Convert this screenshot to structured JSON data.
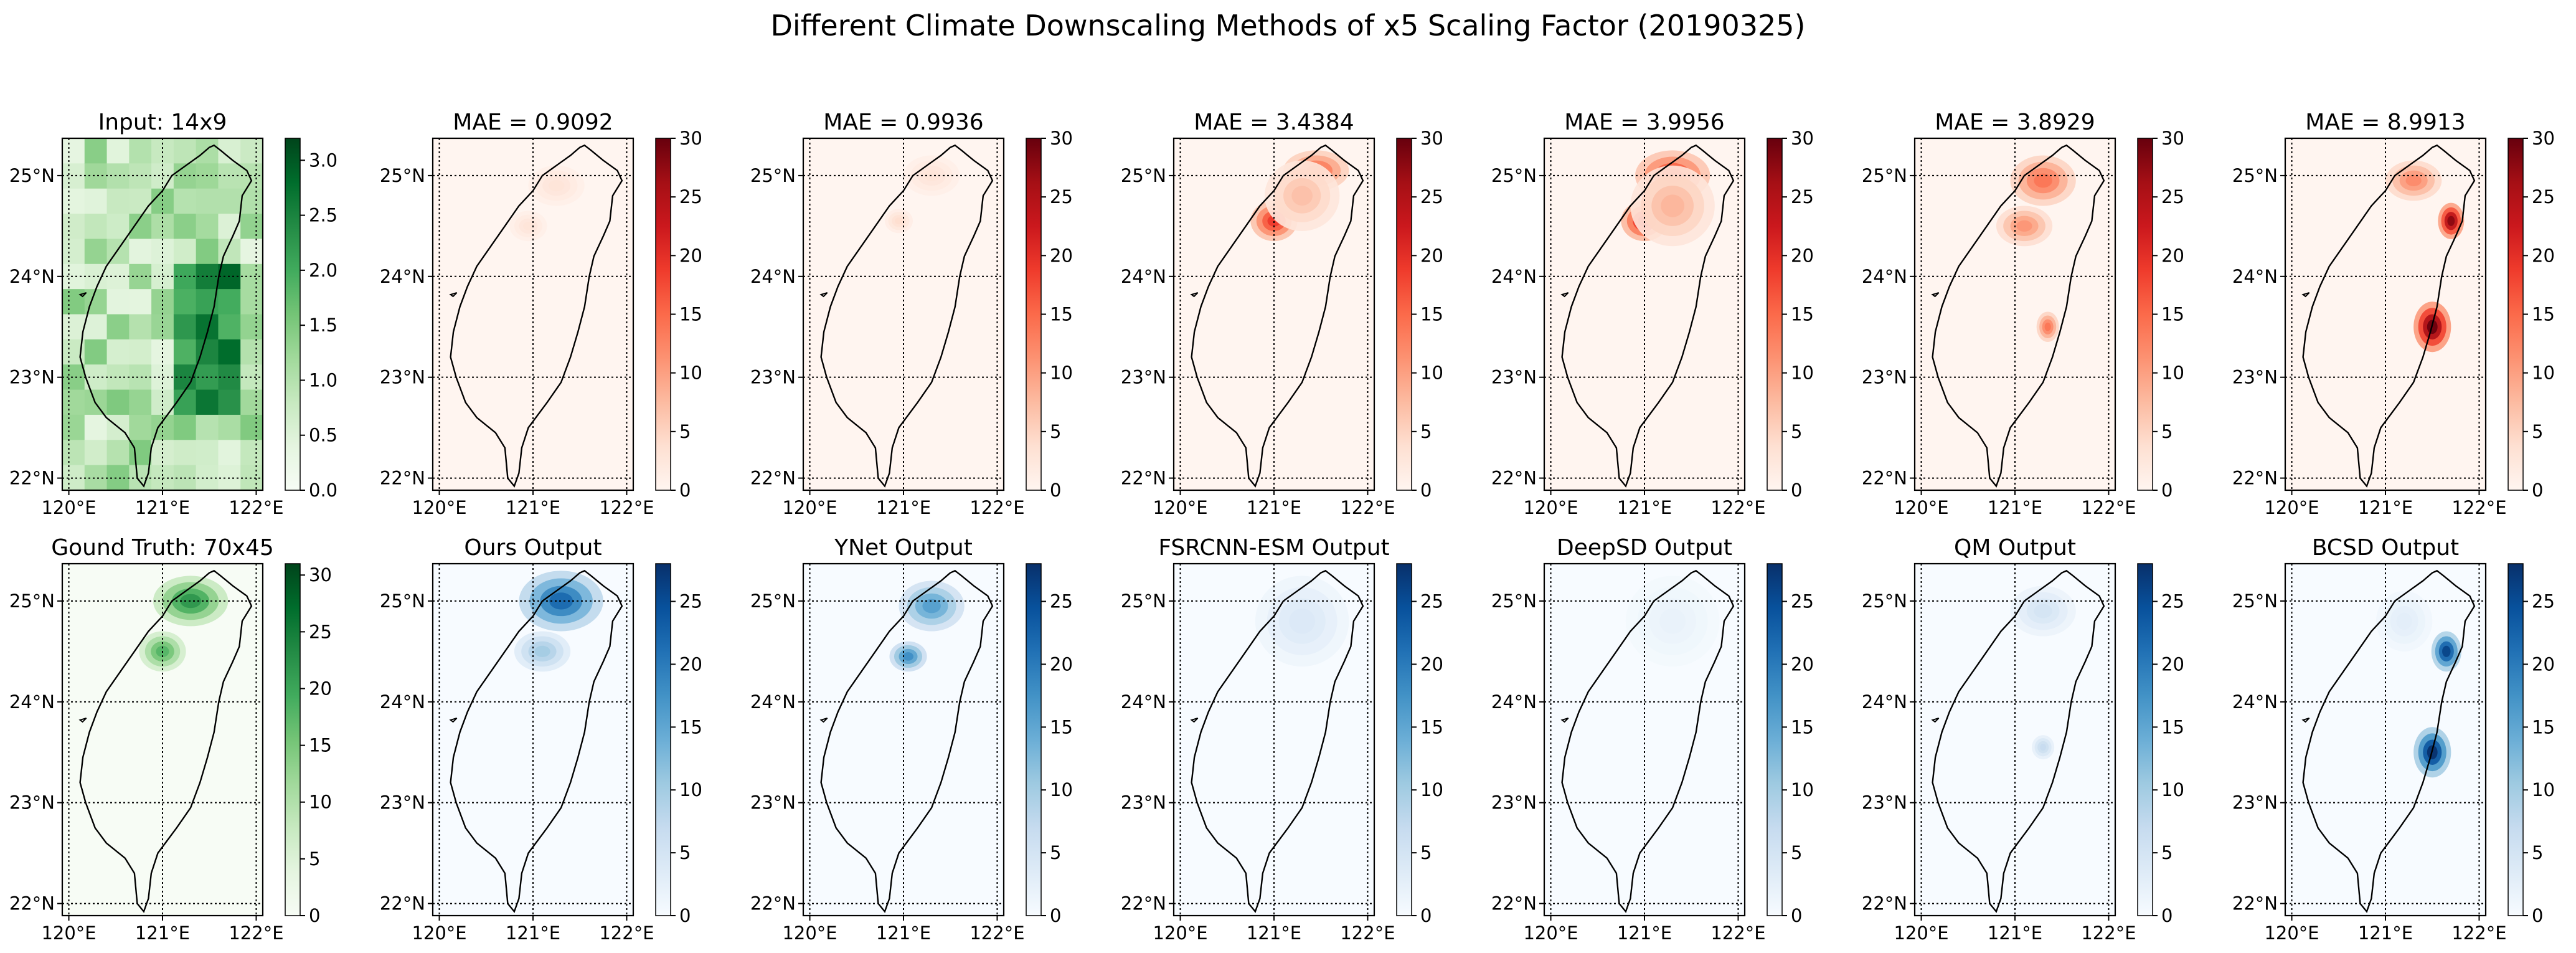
{
  "figure": {
    "title": "Different Climate Downscaling Methods of x5 Scaling Factor (20190325)"
  },
  "colormaps": {
    "Greens": [
      "#f7fcf5",
      "#e5f5e0",
      "#c7e9c0",
      "#a1d99b",
      "#74c476",
      "#41ab5d",
      "#238b45",
      "#006d2c",
      "#00441b"
    ],
    "Reds": [
      "#fff5f0",
      "#fee0d2",
      "#fcbba1",
      "#fc9272",
      "#fb6a4a",
      "#ef3b2c",
      "#cb181d",
      "#a50f15",
      "#67000d"
    ],
    "Blues": [
      "#f7fbff",
      "#deebf7",
      "#c6dbef",
      "#9ecae1",
      "#6baed6",
      "#4292c6",
      "#2171b5",
      "#08519c",
      "#08306b"
    ]
  },
  "chart_data": [
    {
      "type": "heatmap",
      "title": "Input: 14x9",
      "cmap": "Greens",
      "range": [
        0,
        3.2
      ],
      "colorbar_ticks": [
        "0.0",
        "0.5",
        "1.0",
        "1.5",
        "2.0",
        "2.5",
        "3.0"
      ],
      "colorbar_values": [
        0,
        0.5,
        1.0,
        1.5,
        2.0,
        2.5,
        3.0
      ],
      "x_ticks": [
        "120°E",
        "121°E",
        "122°E"
      ],
      "y_ticks": [
        "25°N",
        "24°N",
        "23°N",
        "22°N"
      ],
      "blobs": []
    },
    {
      "type": "heatmap",
      "title": "MAE = 0.9092",
      "cmap": "Reds",
      "range": [
        0,
        30
      ],
      "colorbar_ticks": [
        "0",
        "5",
        "10",
        "15",
        "20",
        "25",
        "30"
      ],
      "colorbar_values": [
        0,
        5,
        10,
        15,
        20,
        25,
        30
      ],
      "x_ticks": [
        "120°E",
        "121°E",
        "122°E"
      ],
      "y_ticks": [
        "25°N",
        "24°N",
        "23°N",
        "22°N"
      ],
      "blobs": [
        {
          "lon": 121.25,
          "lat": 24.9,
          "rl": 0.3,
          "rt": 0.2,
          "v": 3
        },
        {
          "lon": 120.95,
          "lat": 24.5,
          "rl": 0.2,
          "rt": 0.15,
          "v": 3
        }
      ]
    },
    {
      "type": "heatmap",
      "title": "MAE = 0.9936",
      "cmap": "Reds",
      "range": [
        0,
        30
      ],
      "colorbar_ticks": [
        "0",
        "5",
        "10",
        "15",
        "20",
        "25",
        "30"
      ],
      "colorbar_values": [
        0,
        5,
        10,
        15,
        20,
        25,
        30
      ],
      "x_ticks": [
        "120°E",
        "121°E",
        "122°E"
      ],
      "y_ticks": [
        "25°N",
        "24°N",
        "23°N",
        "22°N"
      ],
      "blobs": [
        {
          "lon": 121.3,
          "lat": 25.0,
          "rl": 0.3,
          "rt": 0.2,
          "v": 3
        },
        {
          "lon": 120.95,
          "lat": 24.55,
          "rl": 0.15,
          "rt": 0.12,
          "v": 4
        }
      ]
    },
    {
      "type": "heatmap",
      "title": "MAE = 3.4384",
      "cmap": "Reds",
      "range": [
        0,
        30
      ],
      "colorbar_ticks": [
        "0",
        "5",
        "10",
        "15",
        "20",
        "25",
        "30"
      ],
      "colorbar_values": [
        0,
        5,
        10,
        15,
        20,
        25,
        30
      ],
      "x_ticks": [
        "120°E",
        "121°E",
        "122°E"
      ],
      "y_ticks": [
        "25°N",
        "24°N",
        "23°N",
        "22°N"
      ],
      "blobs": [
        {
          "lon": 121.45,
          "lat": 25.05,
          "rl": 0.35,
          "rt": 0.2,
          "v": 15
        },
        {
          "lon": 121.0,
          "lat": 24.55,
          "rl": 0.25,
          "rt": 0.2,
          "v": 19
        },
        {
          "lon": 121.3,
          "lat": 24.8,
          "rl": 0.4,
          "rt": 0.35,
          "v": 7
        }
      ]
    },
    {
      "type": "heatmap",
      "title": "MAE = 3.9956",
      "cmap": "Reds",
      "range": [
        0,
        30
      ],
      "colorbar_ticks": [
        "0",
        "5",
        "10",
        "15",
        "20",
        "25",
        "30"
      ],
      "colorbar_values": [
        0,
        5,
        10,
        15,
        20,
        25,
        30
      ],
      "x_ticks": [
        "120°E",
        "121°E",
        "122°E"
      ],
      "y_ticks": [
        "25°N",
        "24°N",
        "23°N",
        "22°N"
      ],
      "blobs": [
        {
          "lon": 121.3,
          "lat": 25.0,
          "rl": 0.4,
          "rt": 0.25,
          "v": 18
        },
        {
          "lon": 121.0,
          "lat": 24.55,
          "rl": 0.25,
          "rt": 0.2,
          "v": 22
        },
        {
          "lon": 121.3,
          "lat": 24.7,
          "rl": 0.45,
          "rt": 0.4,
          "v": 8
        }
      ]
    },
    {
      "type": "heatmap",
      "title": "MAE = 3.8929",
      "cmap": "Reds",
      "range": [
        0,
        30
      ],
      "colorbar_ticks": [
        "0",
        "5",
        "10",
        "15",
        "20",
        "25",
        "30"
      ],
      "colorbar_values": [
        0,
        5,
        10,
        15,
        20,
        25,
        30
      ],
      "x_ticks": [
        "120°E",
        "121°E",
        "122°E"
      ],
      "y_ticks": [
        "25°N",
        "24°N",
        "23°N",
        "22°N"
      ],
      "blobs": [
        {
          "lon": 121.3,
          "lat": 24.95,
          "rl": 0.35,
          "rt": 0.25,
          "v": 14
        },
        {
          "lon": 121.1,
          "lat": 24.5,
          "rl": 0.3,
          "rt": 0.2,
          "v": 11
        },
        {
          "lon": 121.35,
          "lat": 23.5,
          "rl": 0.12,
          "rt": 0.15,
          "v": 14
        }
      ]
    },
    {
      "type": "heatmap",
      "title": "MAE = 8.9913",
      "cmap": "Reds",
      "range": [
        0,
        30
      ],
      "colorbar_ticks": [
        "0",
        "5",
        "10",
        "15",
        "20",
        "25",
        "30"
      ],
      "colorbar_values": [
        0,
        5,
        10,
        15,
        20,
        25,
        30
      ],
      "x_ticks": [
        "120°E",
        "121°E",
        "122°E"
      ],
      "y_ticks": [
        "25°N",
        "24°N",
        "23°N",
        "22°N"
      ],
      "blobs": [
        {
          "lon": 121.3,
          "lat": 24.95,
          "rl": 0.3,
          "rt": 0.2,
          "v": 12
        },
        {
          "lon": 121.7,
          "lat": 24.55,
          "rl": 0.14,
          "rt": 0.18,
          "v": 28
        },
        {
          "lon": 121.5,
          "lat": 23.5,
          "rl": 0.2,
          "rt": 0.25,
          "v": 30
        }
      ]
    },
    {
      "type": "heatmap",
      "title": "Gound Truth: 70x45",
      "cmap": "Greens",
      "range": [
        0,
        31
      ],
      "colorbar_ticks": [
        "0",
        "5",
        "10",
        "15",
        "20",
        "25",
        "30"
      ],
      "colorbar_values": [
        0,
        5,
        10,
        15,
        20,
        25,
        30
      ],
      "x_ticks": [
        "120°E",
        "121°E",
        "122°E"
      ],
      "y_ticks": [
        "25°N",
        "24°N",
        "23°N",
        "22°N"
      ],
      "blobs": [
        {
          "lon": 121.3,
          "lat": 25.0,
          "rl": 0.4,
          "rt": 0.25,
          "v": 22
        },
        {
          "lon": 121.0,
          "lat": 24.5,
          "rl": 0.25,
          "rt": 0.2,
          "v": 18
        }
      ]
    },
    {
      "type": "heatmap",
      "title": "Ours Output",
      "cmap": "Blues",
      "range": [
        0,
        28
      ],
      "colorbar_ticks": [
        "0",
        "5",
        "10",
        "15",
        "20",
        "25"
      ],
      "colorbar_values": [
        0,
        5,
        10,
        15,
        20,
        25
      ],
      "x_ticks": [
        "120°E",
        "121°E",
        "122°E"
      ],
      "y_ticks": [
        "25°N",
        "24°N",
        "23°N",
        "22°N"
      ],
      "blobs": [
        {
          "lon": 121.3,
          "lat": 25.0,
          "rl": 0.45,
          "rt": 0.3,
          "v": 22
        },
        {
          "lon": 121.1,
          "lat": 24.5,
          "rl": 0.3,
          "rt": 0.2,
          "v": 10
        }
      ]
    },
    {
      "type": "heatmap",
      "title": "YNet Output",
      "cmap": "Blues",
      "range": [
        0,
        28
      ],
      "colorbar_ticks": [
        "0",
        "5",
        "10",
        "15",
        "20",
        "25"
      ],
      "colorbar_values": [
        0,
        5,
        10,
        15,
        20,
        25
      ],
      "x_ticks": [
        "120°E",
        "121°E",
        "122°E"
      ],
      "y_ticks": [
        "25°N",
        "24°N",
        "23°N",
        "22°N"
      ],
      "blobs": [
        {
          "lon": 121.3,
          "lat": 24.95,
          "rl": 0.35,
          "rt": 0.25,
          "v": 16
        },
        {
          "lon": 121.05,
          "lat": 24.45,
          "rl": 0.2,
          "rt": 0.15,
          "v": 18
        }
      ]
    },
    {
      "type": "heatmap",
      "title": "FSRCNN-ESM Output",
      "cmap": "Blues",
      "range": [
        0,
        28
      ],
      "colorbar_ticks": [
        "0",
        "5",
        "10",
        "15",
        "20",
        "25"
      ],
      "colorbar_values": [
        0,
        5,
        10,
        15,
        20,
        25
      ],
      "x_ticks": [
        "120°E",
        "121°E",
        "122°E"
      ],
      "y_ticks": [
        "25°N",
        "24°N",
        "23°N",
        "22°N"
      ],
      "blobs": [
        {
          "lon": 121.3,
          "lat": 24.8,
          "rl": 0.5,
          "rt": 0.45,
          "v": 4
        }
      ]
    },
    {
      "type": "heatmap",
      "title": "DeepSD Output",
      "cmap": "Blues",
      "range": [
        0,
        28
      ],
      "colorbar_ticks": [
        "0",
        "5",
        "10",
        "15",
        "20",
        "25"
      ],
      "colorbar_values": [
        0,
        5,
        10,
        15,
        20,
        25
      ],
      "x_ticks": [
        "120°E",
        "121°E",
        "122°E"
      ],
      "y_ticks": [
        "25°N",
        "24°N",
        "23°N",
        "22°N"
      ],
      "blobs": [
        {
          "lon": 121.3,
          "lat": 24.8,
          "rl": 0.5,
          "rt": 0.45,
          "v": 2
        }
      ]
    },
    {
      "type": "heatmap",
      "title": "QM Output",
      "cmap": "Blues",
      "range": [
        0,
        28
      ],
      "colorbar_ticks": [
        "0",
        "5",
        "10",
        "15",
        "20",
        "25"
      ],
      "colorbar_values": [
        0,
        5,
        10,
        15,
        20,
        25
      ],
      "x_ticks": [
        "120°E",
        "121°E",
        "122°E"
      ],
      "y_ticks": [
        "25°N",
        "24°N",
        "23°N",
        "22°N"
      ],
      "blobs": [
        {
          "lon": 121.3,
          "lat": 24.9,
          "rl": 0.35,
          "rt": 0.25,
          "v": 5
        },
        {
          "lon": 121.3,
          "lat": 23.55,
          "rl": 0.12,
          "rt": 0.12,
          "v": 7
        }
      ]
    },
    {
      "type": "heatmap",
      "title": "BCSD Output",
      "cmap": "Blues",
      "range": [
        0,
        28
      ],
      "colorbar_ticks": [
        "0",
        "5",
        "10",
        "15",
        "20",
        "25"
      ],
      "colorbar_values": [
        0,
        5,
        10,
        15,
        20,
        25
      ],
      "x_ticks": [
        "120°E",
        "121°E",
        "122°E"
      ],
      "y_ticks": [
        "25°N",
        "24°N",
        "23°N",
        "22°N"
      ],
      "blobs": [
        {
          "lon": 121.65,
          "lat": 24.5,
          "rl": 0.16,
          "rt": 0.2,
          "v": 26
        },
        {
          "lon": 121.5,
          "lat": 23.5,
          "rl": 0.2,
          "rt": 0.25,
          "v": 28
        },
        {
          "lon": 121.2,
          "lat": 24.8,
          "rl": 0.3,
          "rt": 0.3,
          "v": 3
        }
      ]
    }
  ]
}
